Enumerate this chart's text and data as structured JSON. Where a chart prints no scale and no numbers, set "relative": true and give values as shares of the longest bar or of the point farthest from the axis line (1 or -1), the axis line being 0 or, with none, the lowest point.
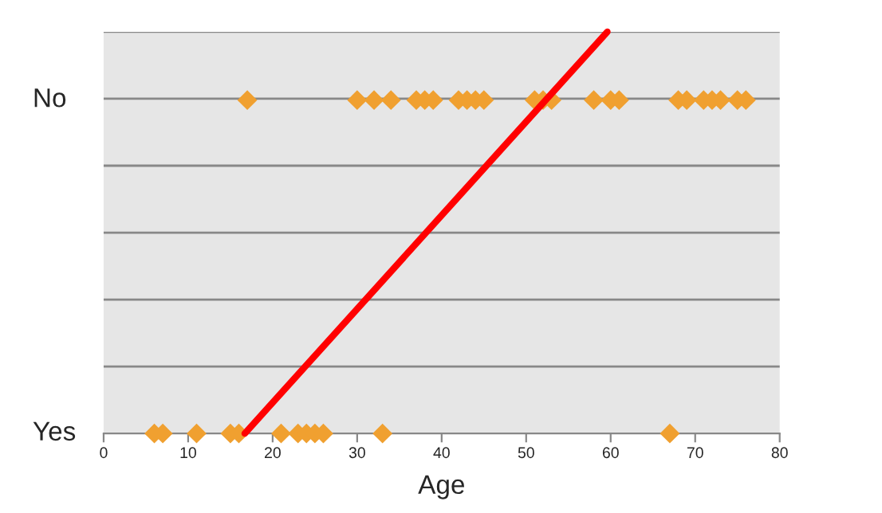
{
  "chart_data": {
    "type": "scatter",
    "xlabel": "Age",
    "xlim": [
      0,
      80
    ],
    "xticks": [
      0,
      10,
      20,
      30,
      40,
      50,
      60,
      70,
      80
    ],
    "relative": true,
    "annotations": [
      "No",
      "Yes"
    ],
    "grid": "y",
    "marker": "diamond",
    "series": [
      {
        "color": "#f0a030",
        "x": [
          17,
          30,
          32,
          34,
          37,
          38,
          39,
          42,
          43,
          44,
          45,
          51,
          52,
          53,
          58,
          60,
          61,
          68,
          69,
          71,
          72,
          73,
          75,
          76,
          6,
          7,
          11,
          15,
          16,
          21,
          23,
          24,
          25,
          26,
          33,
          67
        ],
        "values": [
          0.83,
          0.83,
          0.83,
          0.83,
          0.83,
          0.83,
          0.83,
          0.83,
          0.83,
          0.83,
          0.83,
          0.83,
          0.83,
          0.83,
          0.83,
          0.83,
          0.83,
          0.83,
          0.83,
          0.83,
          0.83,
          0.83,
          0.83,
          0.83,
          0,
          0,
          0,
          0,
          0,
          0,
          0,
          0,
          0,
          0,
          0,
          0
        ]
      },
      {
        "type": "line",
        "color": "#ff0000",
        "marker": "none",
        "x": [
          16.7,
          59.6
        ],
        "values": [
          0,
          1
        ]
      }
    ]
  }
}
